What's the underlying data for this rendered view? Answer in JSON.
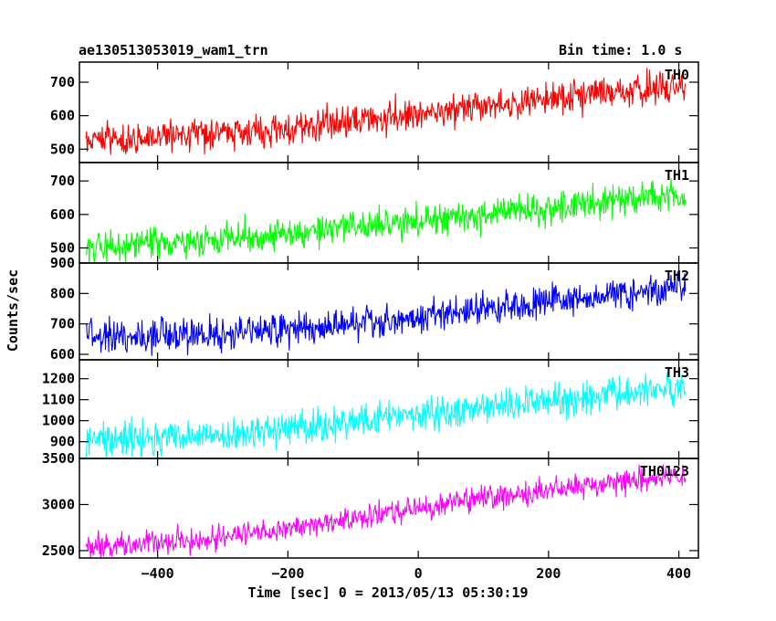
{
  "header": {
    "title": "ae130513053019_wam1_trn",
    "bin_time": "Bin time: 1.0 s"
  },
  "chart_data": {
    "type": "line",
    "title": "ae130513053019_wam1_trn",
    "subtitle": "Bin time: 1.0 s",
    "xlabel": "Time [sec] 0 = 2013/05/13 05:30:19",
    "ylabel": "Counts/sec",
    "xlim": [
      -520,
      430
    ],
    "x_ticks": [
      -400,
      -200,
      0,
      200,
      400
    ],
    "x_tick_labels": [
      "−400",
      "−200",
      "0",
      "200",
      "400"
    ],
    "x_range": [
      -510,
      410
    ],
    "grid": false,
    "legend": "none",
    "panels": [
      {
        "name": "TH0",
        "color": "#ff0000",
        "ylim": [
          460,
          760
        ],
        "y_ticks": [
          500,
          600,
          700
        ],
        "y_tick_labels": [
          "500",
          "600",
          "700"
        ],
        "trend": [
          [
            -510,
            525
          ],
          [
            -300,
            545
          ],
          [
            -100,
            580
          ],
          [
            100,
            630
          ],
          [
            410,
            695
          ]
        ],
        "noise": 35
      },
      {
        "name": "TH1",
        "color": "#00ff00",
        "ylim": [
          455,
          755
        ],
        "y_ticks": [
          500,
          600,
          700
        ],
        "y_tick_labels": [
          "500",
          "600",
          "700"
        ],
        "trend": [
          [
            -510,
            505
          ],
          [
            -300,
            520
          ],
          [
            -100,
            565
          ],
          [
            100,
            600
          ],
          [
            410,
            665
          ]
        ],
        "noise": 33
      },
      {
        "name": "TH2",
        "color": "#0000ff",
        "ylim": [
          582,
          900
        ],
        "y_ticks": [
          600,
          700,
          800,
          900
        ],
        "y_tick_labels": [
          "600",
          "700",
          "800",
          "900"
        ],
        "trend": [
          [
            -510,
            655
          ],
          [
            -300,
            665
          ],
          [
            -100,
            700
          ],
          [
            100,
            750
          ],
          [
            410,
            825
          ]
        ],
        "noise": 40
      },
      {
        "name": "TH3",
        "color": "#00ffff",
        "ylim": [
          820,
          1290
        ],
        "y_ticks": [
          900,
          1000,
          1100,
          1200
        ],
        "y_tick_labels": [
          "900",
          "1000",
          "1100",
          "1200"
        ],
        "trend": [
          [
            -510,
            900
          ],
          [
            -300,
            930
          ],
          [
            -100,
            990
          ],
          [
            100,
            1060
          ],
          [
            410,
            1170
          ]
        ],
        "noise": 55
      },
      {
        "name": "TH0123",
        "color": "#ff00ff",
        "ylim": [
          2420,
          3500
        ],
        "y_ticks": [
          2500,
          3000,
          3500
        ],
        "y_tick_labels": [
          "2500",
          "3000",
          "3500"
        ],
        "trend": [
          [
            -510,
            2540
          ],
          [
            -300,
            2640
          ],
          [
            -100,
            2850
          ],
          [
            100,
            3070
          ],
          [
            410,
            3330
          ]
        ],
        "noise": 95
      }
    ]
  }
}
